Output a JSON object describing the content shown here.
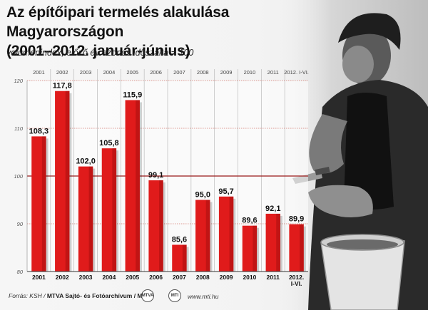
{
  "title_line1": "Az építőipari termelés alakulása Magyarországon",
  "title_line2": "(2001–2012. január-június)",
  "subtitle": "volumenindex, előző év azonos időszaka = 100",
  "footer": {
    "source_prefix": "Forrás: KSH / ",
    "source_org": "MTVA Sajtó- és Fotóarchívum / MTI",
    "url": "www.mti.hu",
    "logo1": "MTVA",
    "logo2": "MTI"
  },
  "colors": {
    "bar": "#e01b1b",
    "bar_dark": "#a80e0e",
    "reference_line": "#9a1a1a",
    "grid": "#c0392b"
  },
  "chart_data": {
    "type": "bar",
    "title": "Az építőipari termelés alakulása Magyarországon (2001–2012. január-június)",
    "subtitle": "volumenindex, előző év azonos időszaka = 100",
    "categories": [
      "2001",
      "2002",
      "2003",
      "2004",
      "2005",
      "2006",
      "2007",
      "2008",
      "2009",
      "2010",
      "2011",
      "2012. I-VI."
    ],
    "categories_bottom": [
      "2001",
      "2002",
      "2003",
      "2004",
      "2005",
      "2006",
      "2007",
      "2008",
      "2009",
      "2010",
      "2011",
      "2012.\nI-VI."
    ],
    "values": [
      108.3,
      117.8,
      102.0,
      105.8,
      115.9,
      99.1,
      85.6,
      95.0,
      95.7,
      89.6,
      92.1,
      89.9
    ],
    "value_labels": [
      "108,3",
      "117,8",
      "102,0",
      "105,8",
      "115,9",
      "99,1",
      "85,6",
      "95,0",
      "95,7",
      "89,6",
      "92,1",
      "89,9"
    ],
    "yticks": [
      80,
      90,
      100,
      110,
      120
    ],
    "ylim": [
      80,
      120
    ],
    "reference_line": 100,
    "grid": true,
    "xlabel": "",
    "ylabel": ""
  }
}
